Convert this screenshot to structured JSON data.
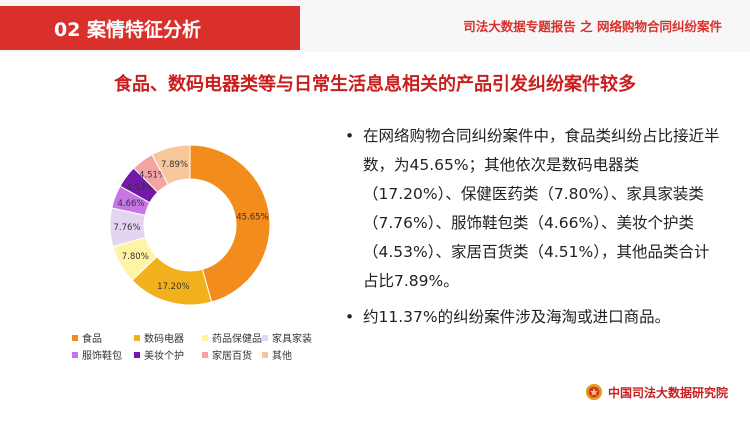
{
  "header": {
    "section_title": "02 案情特征分析",
    "report_name": "司法大数据专题报告 之 网络购物合同纠纷案件"
  },
  "slide": {
    "heading": "食品、数码电器类等与日常生活息息相关的产品引发纠纷案件较多"
  },
  "bullets": {
    "marker": "•",
    "items": [
      "在网络购物合同纠纷案件中，食品类纠纷占比接近半数，为45.65%；其他依次是数码电器类（17.20%）、保健医药类（7.80%）、家具家装类（7.76%）、服饰鞋包类（4.66%）、美妆个护类（4.53%）、家居百货类（4.51%），其他品类合计占比7.89%。",
      "约11.37%的纠纷案件涉及海淘或进口商品。"
    ]
  },
  "footer": {
    "org_name": "中国司法大数据研究院",
    "logo_icon": "court-emblem-icon"
  },
  "chart_data": {
    "type": "pie",
    "donut": true,
    "categories": [
      "食品",
      "数码电器",
      "药品保健品",
      "家具家装",
      "服饰鞋包",
      "美妆个护",
      "家居百货",
      "其他"
    ],
    "values": [
      45.65,
      17.2,
      7.8,
      7.76,
      4.66,
      4.53,
      4.51,
      7.89
    ],
    "data_labels": [
      "45.65%",
      "17.20%",
      "7.80%",
      "7.76%",
      "4.66%",
      "4.53%",
      "4.51%",
      "7.89%"
    ],
    "colors": [
      "#f28c1c",
      "#f2b11c",
      "#fff3a6",
      "#e3d5f2",
      "#c874e6",
      "#7418a8",
      "#f5a4a4",
      "#f7c79b"
    ],
    "legend_position": "bottom"
  }
}
